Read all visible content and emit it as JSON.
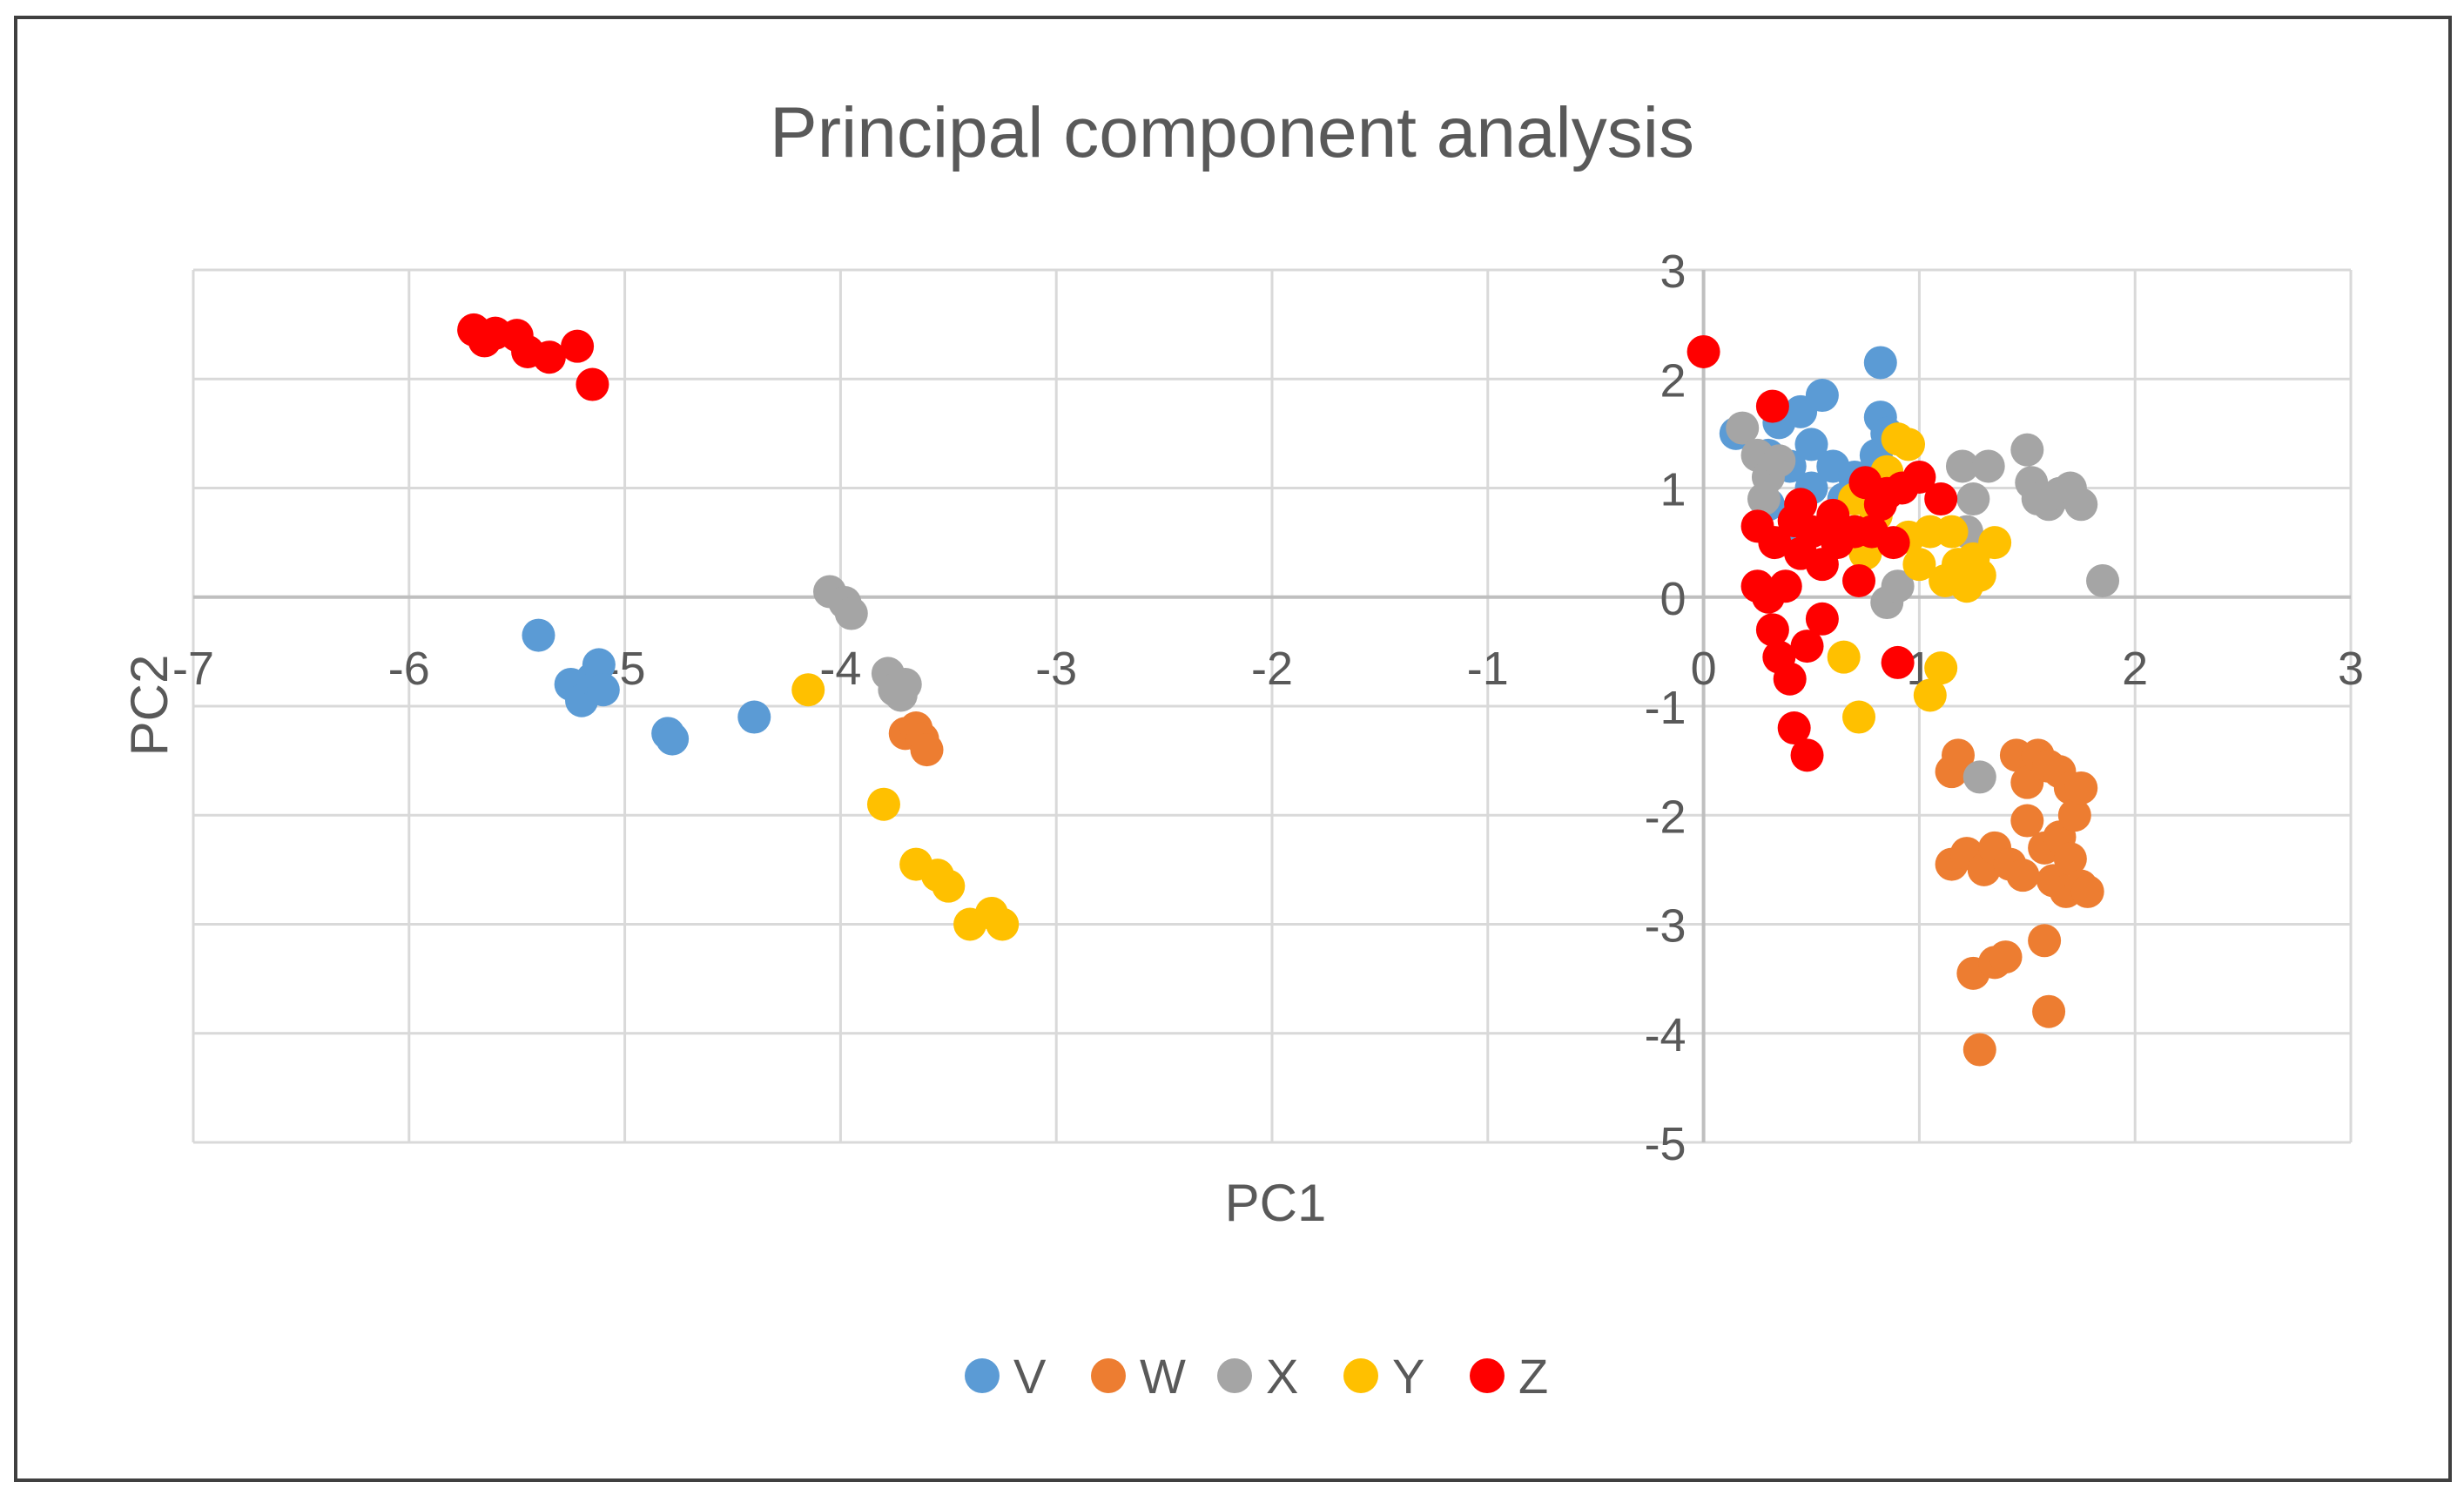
{
  "chart_data": {
    "type": "scatter",
    "title": "Principal component analysis",
    "xlabel": "PC1",
    "ylabel": "PC2",
    "xlim": [
      -7,
      3
    ],
    "ylim": [
      -5,
      3
    ],
    "x_ticks": [
      -7,
      -6,
      -5,
      -4,
      -3,
      -2,
      -1,
      0,
      1,
      2,
      3
    ],
    "y_ticks": [
      3,
      2,
      1,
      0,
      -1,
      -2,
      -3,
      -4,
      -5
    ],
    "grid": true,
    "legend_position": "bottom",
    "series": [
      {
        "name": "V",
        "color": "#5B9BD5",
        "points": [
          [
            -5.4,
            -0.35
          ],
          [
            -5.25,
            -0.8
          ],
          [
            -5.2,
            -0.95
          ],
          [
            -5.15,
            -0.75
          ],
          [
            -5.12,
            -0.62
          ],
          [
            -5.1,
            -0.85
          ],
          [
            -4.8,
            -1.25
          ],
          [
            -4.78,
            -1.3
          ],
          [
            -4.4,
            -1.1
          ],
          [
            0.15,
            1.5
          ],
          [
            0.3,
            1.3
          ],
          [
            0.35,
            1.6
          ],
          [
            0.4,
            1.2
          ],
          [
            0.45,
            1.7
          ],
          [
            0.5,
            1.4
          ],
          [
            0.55,
            1.85
          ],
          [
            0.5,
            1.0
          ],
          [
            0.6,
            1.2
          ],
          [
            0.65,
            0.9
          ],
          [
            0.7,
            1.1
          ],
          [
            0.8,
            1.3
          ],
          [
            0.82,
            1.65
          ],
          [
            0.82,
            2.15
          ],
          [
            0.85,
            1.5
          ],
          [
            0.3,
            0.85
          ],
          [
            0.45,
            0.6
          ]
        ]
      },
      {
        "name": "W",
        "color": "#ED7D31",
        "points": [
          [
            -3.7,
            -1.25
          ],
          [
            -3.65,
            -1.2
          ],
          [
            -3.62,
            -1.3
          ],
          [
            -3.6,
            -1.4
          ],
          [
            1.15,
            -1.6
          ],
          [
            1.15,
            -2.45
          ],
          [
            1.18,
            -1.45
          ],
          [
            1.22,
            -2.35
          ],
          [
            1.25,
            -3.45
          ],
          [
            1.28,
            -4.15
          ],
          [
            1.3,
            -2.5
          ],
          [
            1.35,
            -2.3
          ],
          [
            1.35,
            -3.35
          ],
          [
            1.4,
            -3.3
          ],
          [
            1.42,
            -2.45
          ],
          [
            1.45,
            -1.45
          ],
          [
            1.48,
            -2.55
          ],
          [
            1.5,
            -1.7
          ],
          [
            1.5,
            -2.05
          ],
          [
            1.55,
            -1.45
          ],
          [
            1.58,
            -2.3
          ],
          [
            1.58,
            -3.15
          ],
          [
            1.6,
            -3.8
          ],
          [
            1.6,
            -1.55
          ],
          [
            1.62,
            -2.6
          ],
          [
            1.65,
            -1.6
          ],
          [
            1.65,
            -2.2
          ],
          [
            1.68,
            -2.7
          ],
          [
            1.7,
            -1.75
          ],
          [
            1.7,
            -2.4
          ],
          [
            1.72,
            -2.0
          ],
          [
            1.75,
            -2.65
          ],
          [
            1.78,
            -2.7
          ],
          [
            1.75,
            -1.75
          ]
        ]
      },
      {
        "name": "X",
        "color": "#A5A5A5",
        "points": [
          [
            -4.05,
            0.05
          ],
          [
            -3.98,
            -0.05
          ],
          [
            -3.95,
            -0.15
          ],
          [
            -3.78,
            -0.7
          ],
          [
            -3.75,
            -0.85
          ],
          [
            -3.72,
            -0.9
          ],
          [
            -3.7,
            -0.8
          ],
          [
            0.18,
            1.55
          ],
          [
            0.25,
            1.3
          ],
          [
            0.3,
            1.1
          ],
          [
            0.35,
            1.25
          ],
          [
            0.28,
            0.9
          ],
          [
            0.85,
            -0.05
          ],
          [
            0.9,
            0.1
          ],
          [
            1.2,
            1.2
          ],
          [
            1.22,
            0.6
          ],
          [
            1.25,
            0.9
          ],
          [
            1.32,
            1.2
          ],
          [
            1.28,
            -1.65
          ],
          [
            1.5,
            1.35
          ],
          [
            1.52,
            1.05
          ],
          [
            1.55,
            0.9
          ],
          [
            1.6,
            0.85
          ],
          [
            1.65,
            0.95
          ],
          [
            1.7,
            1.0
          ],
          [
            1.75,
            0.85
          ],
          [
            1.85,
            0.15
          ]
        ]
      },
      {
        "name": "Y",
        "color": "#FFC000",
        "points": [
          [
            -4.15,
            -0.85
          ],
          [
            -3.8,
            -1.9
          ],
          [
            -3.65,
            -2.45
          ],
          [
            -3.55,
            -2.55
          ],
          [
            -3.5,
            -2.65
          ],
          [
            -3.4,
            -3.0
          ],
          [
            -3.3,
            -2.9
          ],
          [
            -3.25,
            -3.0
          ],
          [
            0.65,
            -0.55
          ],
          [
            0.72,
            -1.1
          ],
          [
            0.7,
            0.9
          ],
          [
            0.75,
            0.4
          ],
          [
            0.8,
            0.75
          ],
          [
            0.85,
            1.15
          ],
          [
            0.9,
            1.45
          ],
          [
            0.95,
            1.4
          ],
          [
            0.95,
            0.55
          ],
          [
            1.0,
            0.3
          ],
          [
            1.05,
            0.6
          ],
          [
            1.05,
            -0.9
          ],
          [
            1.1,
            -0.65
          ],
          [
            1.12,
            0.15
          ],
          [
            1.18,
            0.3
          ],
          [
            1.22,
            0.1
          ],
          [
            1.25,
            0.35
          ],
          [
            1.28,
            0.2
          ],
          [
            1.35,
            0.5
          ],
          [
            1.15,
            0.6
          ]
        ]
      },
      {
        "name": "Z",
        "color": "#FF0000",
        "points": [
          [
            -5.7,
            2.45
          ],
          [
            -5.65,
            2.35
          ],
          [
            -5.6,
            2.42
          ],
          [
            -5.5,
            2.4
          ],
          [
            -5.45,
            2.25
          ],
          [
            -5.35,
            2.2
          ],
          [
            -5.22,
            2.3
          ],
          [
            -5.15,
            1.95
          ],
          [
            0.0,
            2.25
          ],
          [
            0.32,
            1.75
          ],
          [
            0.25,
            0.65
          ],
          [
            0.25,
            0.1
          ],
          [
            0.3,
            0.0
          ],
          [
            0.32,
            -0.3
          ],
          [
            0.33,
            0.5
          ],
          [
            0.35,
            -0.55
          ],
          [
            0.38,
            0.1
          ],
          [
            0.4,
            -0.75
          ],
          [
            0.42,
            0.7
          ],
          [
            0.42,
            -1.2
          ],
          [
            0.45,
            0.85
          ],
          [
            0.45,
            0.4
          ],
          [
            0.48,
            -0.45
          ],
          [
            0.48,
            -1.45
          ],
          [
            0.5,
            0.6
          ],
          [
            0.55,
            0.3
          ],
          [
            0.55,
            -0.2
          ],
          [
            0.6,
            0.75
          ],
          [
            0.62,
            0.5
          ],
          [
            0.7,
            0.6
          ],
          [
            0.72,
            0.15
          ],
          [
            0.75,
            1.05
          ],
          [
            0.78,
            0.6
          ],
          [
            0.82,
            0.85
          ],
          [
            0.85,
            0.95
          ],
          [
            0.88,
            0.5
          ],
          [
            0.9,
            -0.6
          ],
          [
            0.92,
            1.0
          ],
          [
            1.0,
            1.1
          ],
          [
            1.1,
            0.9
          ]
        ]
      }
    ]
  }
}
